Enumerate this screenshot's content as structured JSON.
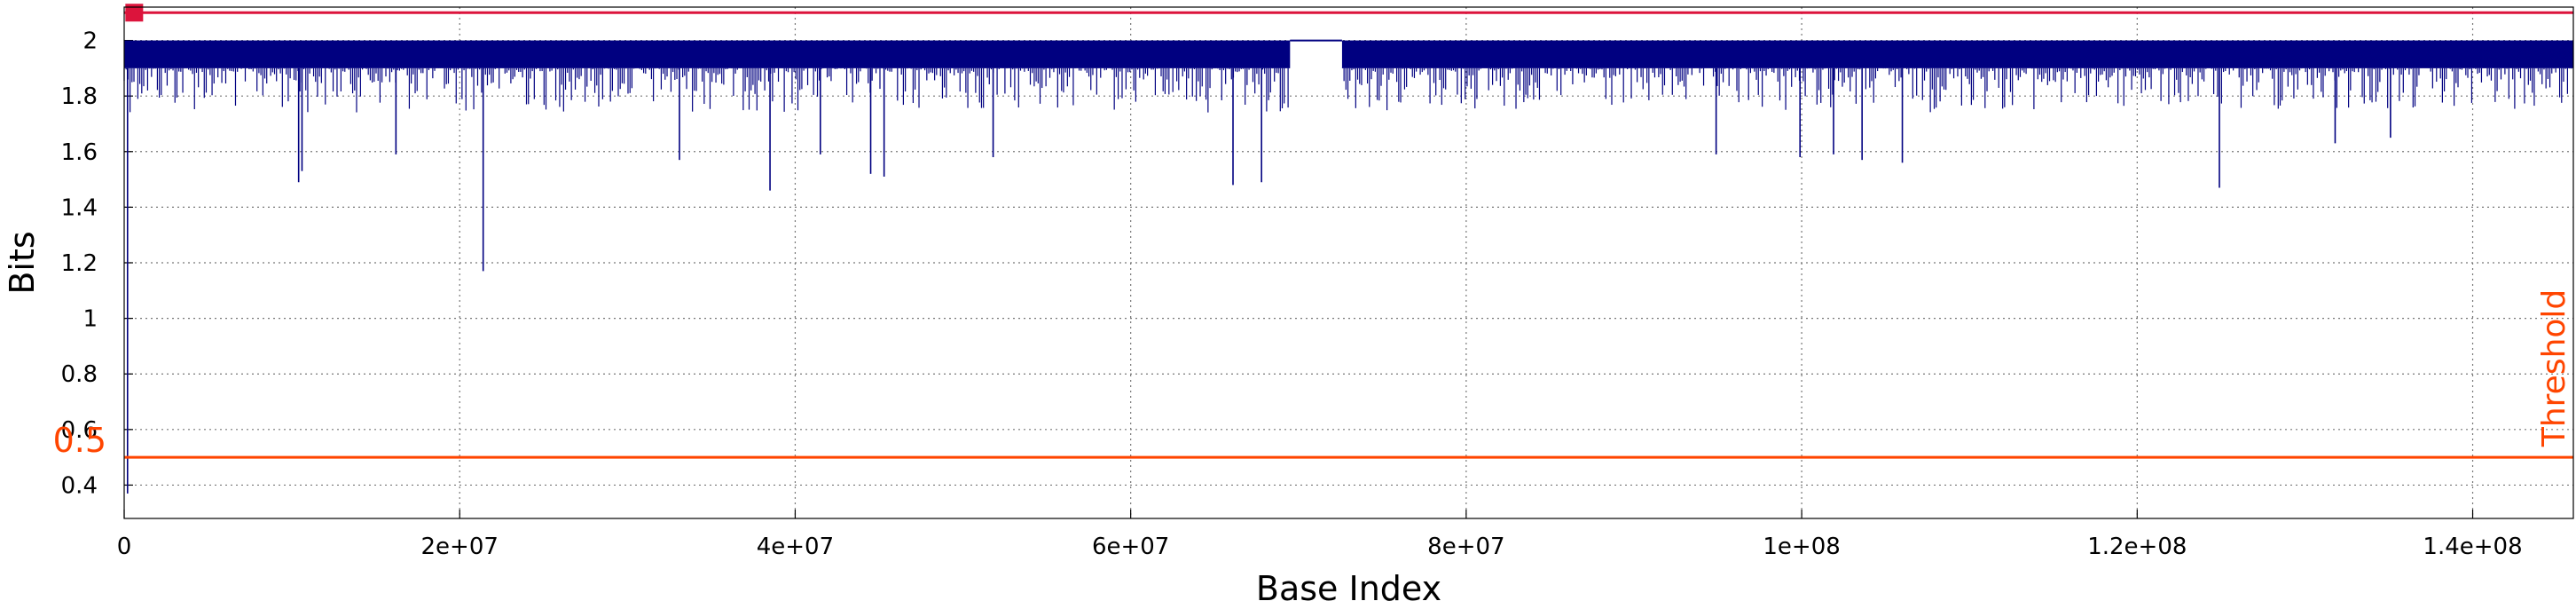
{
  "chart_data": {
    "type": "line",
    "xlabel": "Base Index",
    "ylabel": "Bits",
    "xlim": [
      0,
      146000000
    ],
    "ylim": [
      0.28,
      2.12
    ],
    "x_ticks": [
      {
        "value": 0,
        "label": "0"
      },
      {
        "value": 20000000,
        "label": "2e+07"
      },
      {
        "value": 40000000,
        "label": "4e+07"
      },
      {
        "value": 60000000,
        "label": "6e+07"
      },
      {
        "value": 80000000,
        "label": "8e+07"
      },
      {
        "value": 100000000,
        "label": "1e+08"
      },
      {
        "value": 120000000,
        "label": "1.2e+08"
      },
      {
        "value": 140000000,
        "label": "1.4e+08"
      }
    ],
    "y_ticks": [
      {
        "value": 0.4,
        "label": "0.4"
      },
      {
        "value": 0.6,
        "label": "0.6"
      },
      {
        "value": 0.8,
        "label": "0.8"
      },
      {
        "value": 1.0,
        "label": "1"
      },
      {
        "value": 1.2,
        "label": "1.2"
      },
      {
        "value": 1.4,
        "label": "1.4"
      },
      {
        "value": 1.6,
        "label": "1.6"
      },
      {
        "value": 1.8,
        "label": "1.8"
      },
      {
        "value": 2.0,
        "label": "2"
      }
    ],
    "grid": true,
    "threshold": {
      "value": 0.5,
      "label": "0.5",
      "name": "Threshold",
      "color": "#ff4500"
    },
    "max_line": {
      "value": 2.1,
      "color": "#dc143c"
    },
    "series": [
      {
        "color": "#000080",
        "band": {
          "upper": 2.0,
          "lower": 1.9
        },
        "gap": [
          69500000,
          72600000
        ],
        "dips": [
          [
            200000,
            0.37
          ],
          [
            10400000,
            1.49
          ],
          [
            10600000,
            1.53
          ],
          [
            16200000,
            1.59
          ],
          [
            21400000,
            1.17
          ],
          [
            33100000,
            1.57
          ],
          [
            38500000,
            1.46
          ],
          [
            41500000,
            1.59
          ],
          [
            44500000,
            1.52
          ],
          [
            45300000,
            1.51
          ],
          [
            51800000,
            1.58
          ],
          [
            66100000,
            1.48
          ],
          [
            67800000,
            1.49
          ],
          [
            94900000,
            1.59
          ],
          [
            99900000,
            1.58
          ],
          [
            101900000,
            1.59
          ],
          [
            103600000,
            1.57
          ],
          [
            106000000,
            1.56
          ],
          [
            124900000,
            1.47
          ],
          [
            131800000,
            1.63
          ],
          [
            135100000,
            1.65
          ]
        ]
      }
    ]
  }
}
